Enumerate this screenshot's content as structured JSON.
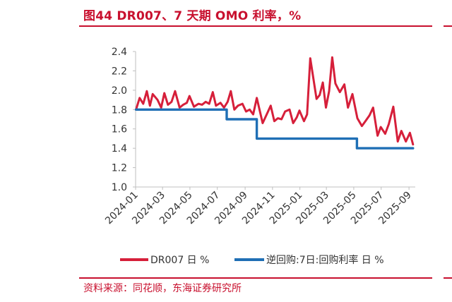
{
  "header": {
    "title": "图44  DR007、7 天期 OMO 利率，%"
  },
  "footer": {
    "source": "资料来源：同花顺，东海证券研究所"
  },
  "colors": {
    "accent": "#c8102e",
    "dr007": "#d61f3a",
    "omo": "#1f6fb5"
  },
  "chart_data": {
    "type": "line",
    "title": "",
    "xlabel": "",
    "ylabel": "",
    "ylim": [
      1.0,
      2.4
    ],
    "yticks": [
      "1.0",
      "1.2",
      "1.4",
      "1.6",
      "1.8",
      "2.0",
      "2.2",
      "2.4"
    ],
    "xticks": [
      "2024-01",
      "2024-03",
      "2024-05",
      "2024-07",
      "2024-09",
      "2024-11",
      "2025-01",
      "2025-03",
      "2025-05",
      "2025-07",
      "2025-09"
    ],
    "grid": false,
    "legend_position": "bottom",
    "series": [
      {
        "name": "DR007 日 %",
        "x": [
          "2024-01-02",
          "2024-01-10",
          "2024-01-18",
          "2024-01-26",
          "2024-02-02",
          "2024-02-08",
          "2024-02-19",
          "2024-02-27",
          "2024-03-05",
          "2024-03-13",
          "2024-03-21",
          "2024-03-29",
          "2024-04-08",
          "2024-04-16",
          "2024-04-24",
          "2024-04-30",
          "2024-05-10",
          "2024-05-20",
          "2024-05-28",
          "2024-06-05",
          "2024-06-13",
          "2024-06-21",
          "2024-06-28",
          "2024-07-08",
          "2024-07-16",
          "2024-07-24",
          "2024-07-31",
          "2024-08-08",
          "2024-08-16",
          "2024-08-26",
          "2024-09-03",
          "2024-09-11",
          "2024-09-19",
          "2024-09-27",
          "2024-10-10",
          "2024-10-18",
          "2024-10-28",
          "2024-11-05",
          "2024-11-13",
          "2024-11-21",
          "2024-11-29",
          "2024-12-09",
          "2024-12-17",
          "2024-12-25",
          "2024-12-31",
          "2025-01-10",
          "2025-01-17",
          "2025-01-24",
          "2025-02-07",
          "2025-02-14",
          "2025-02-21",
          "2025-02-28",
          "2025-03-07",
          "2025-03-14",
          "2025-03-21",
          "2025-03-31",
          "2025-04-10",
          "2025-04-18",
          "2025-04-28",
          "2025-05-09",
          "2025-05-19",
          "2025-05-27",
          "2025-06-05",
          "2025-06-13",
          "2025-06-23",
          "2025-06-30",
          "2025-07-10",
          "2025-07-18",
          "2025-07-28",
          "2025-08-07",
          "2025-08-15",
          "2025-08-25",
          "2025-09-03",
          "2025-09-10"
        ],
        "values": [
          1.8,
          1.92,
          1.86,
          1.99,
          1.84,
          1.96,
          1.9,
          1.82,
          1.97,
          1.85,
          1.88,
          1.99,
          1.82,
          1.85,
          1.87,
          1.94,
          1.83,
          1.86,
          1.85,
          1.88,
          1.86,
          1.98,
          1.84,
          1.87,
          1.82,
          1.88,
          1.99,
          1.8,
          1.84,
          1.86,
          1.78,
          1.8,
          1.75,
          1.92,
          1.66,
          1.74,
          1.84,
          1.68,
          1.71,
          1.7,
          1.78,
          1.8,
          1.66,
          1.72,
          1.79,
          1.68,
          1.75,
          2.33,
          1.91,
          1.95,
          2.08,
          1.82,
          1.99,
          2.34,
          2.07,
          1.98,
          2.06,
          1.82,
          1.96,
          1.71,
          1.63,
          1.68,
          1.74,
          1.82,
          1.53,
          1.62,
          1.55,
          1.65,
          1.83,
          1.47,
          1.58,
          1.47,
          1.56,
          1.44
        ]
      },
      {
        "name": "逆回购:7日:回购利率 日 %",
        "x": [
          "2024-01-02",
          "2024-07-22",
          "2024-07-22",
          "2024-09-27",
          "2024-09-27",
          "2025-05-08",
          "2025-05-08",
          "2025-09-10"
        ],
        "values": [
          1.8,
          1.8,
          1.7,
          1.7,
          1.5,
          1.5,
          1.4,
          1.4
        ]
      }
    ]
  }
}
